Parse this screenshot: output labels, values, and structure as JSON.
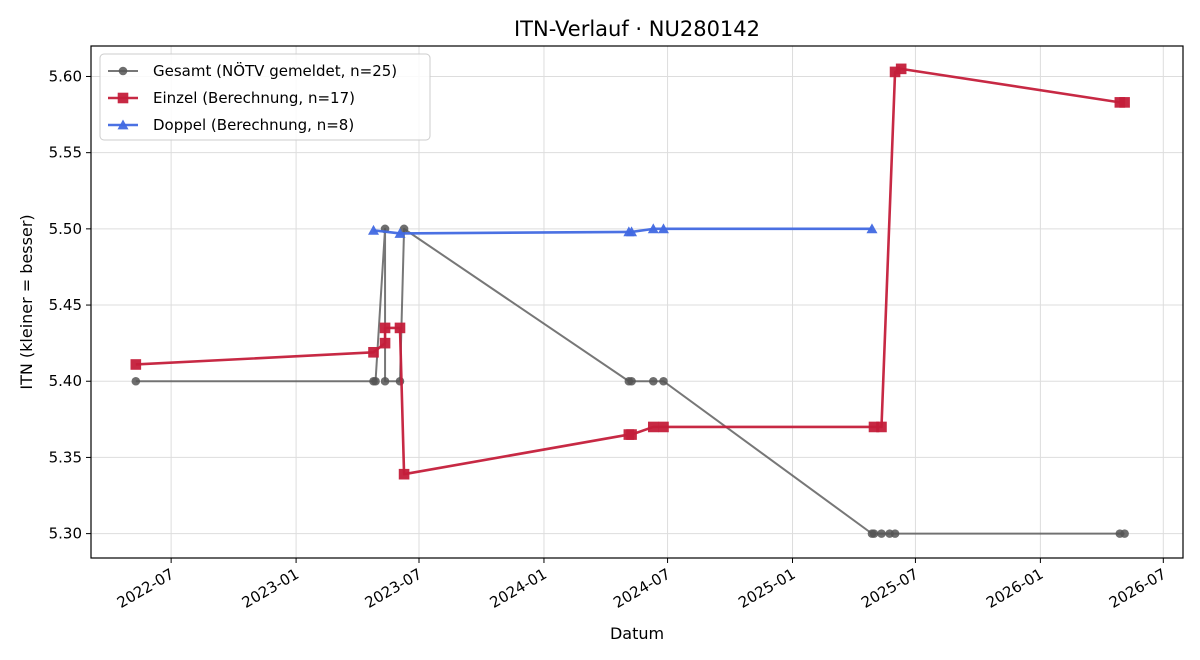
{
  "chart_data": {
    "type": "line",
    "title": "ITN-Verlauf · NU280142",
    "xlabel": "Datum",
    "ylabel": "ITN  (kleiner = besser)",
    "xlim": [
      "2022-03-05",
      "2026-07-30"
    ],
    "ylim": [
      5.284,
      5.62
    ],
    "x_ticks": [
      "2022-07-01",
      "2023-01-01",
      "2023-07-01",
      "2024-01-01",
      "2024-07-01",
      "2025-01-01",
      "2025-07-01",
      "2026-01-01",
      "2026-07-01"
    ],
    "x_tick_labels": [
      "2022-07",
      "2023-01",
      "2023-07",
      "2024-01",
      "2024-07",
      "2025-01",
      "2025-07",
      "2026-01",
      "2026-07"
    ],
    "y_ticks": [
      5.3,
      5.35,
      5.4,
      5.45,
      5.5,
      5.55,
      5.6
    ],
    "y_tick_labels": [
      "5.30",
      "5.35",
      "5.40",
      "5.45",
      "5.50",
      "5.55",
      "5.60"
    ],
    "grid": true,
    "legend_position": "top-left",
    "series": [
      {
        "name": "Gesamt (NÖTV gemeldet, n=25)",
        "color": "#555555",
        "marker": "circle",
        "points": [
          {
            "x": "2022-05-10",
            "y": 5.4
          },
          {
            "x": "2023-04-25",
            "y": 5.4
          },
          {
            "x": "2023-04-28",
            "y": 5.4
          },
          {
            "x": "2023-05-12",
            "y": 5.5
          },
          {
            "x": "2023-05-12",
            "y": 5.4
          },
          {
            "x": "2023-06-03",
            "y": 5.4
          },
          {
            "x": "2023-06-09",
            "y": 5.5
          },
          {
            "x": "2024-05-05",
            "y": 5.4
          },
          {
            "x": "2024-05-09",
            "y": 5.4
          },
          {
            "x": "2024-06-10",
            "y": 5.4
          },
          {
            "x": "2024-06-25",
            "y": 5.4
          },
          {
            "x": "2025-04-28",
            "y": 5.3
          },
          {
            "x": "2025-05-01",
            "y": 5.3
          },
          {
            "x": "2025-05-12",
            "y": 5.3
          },
          {
            "x": "2025-05-24",
            "y": 5.3
          },
          {
            "x": "2025-06-01",
            "y": 5.3
          },
          {
            "x": "2026-04-28",
            "y": 5.3
          },
          {
            "x": "2026-05-05",
            "y": 5.3
          }
        ]
      },
      {
        "name": "Einzel (Berechnung, n=17)",
        "color": "#c41e3a",
        "marker": "square",
        "points": [
          {
            "x": "2022-05-10",
            "y": 5.411
          },
          {
            "x": "2023-04-25",
            "y": 5.419
          },
          {
            "x": "2023-05-12",
            "y": 5.425
          },
          {
            "x": "2023-05-12",
            "y": 5.435
          },
          {
            "x": "2023-06-03",
            "y": 5.435
          },
          {
            "x": "2023-06-09",
            "y": 5.339
          },
          {
            "x": "2024-05-05",
            "y": 5.365
          },
          {
            "x": "2024-05-09",
            "y": 5.365
          },
          {
            "x": "2024-06-10",
            "y": 5.37
          },
          {
            "x": "2024-06-25",
            "y": 5.37
          },
          {
            "x": "2025-05-01",
            "y": 5.37
          },
          {
            "x": "2025-05-12",
            "y": 5.37
          },
          {
            "x": "2025-06-01",
            "y": 5.603
          },
          {
            "x": "2025-06-10",
            "y": 5.605
          },
          {
            "x": "2026-04-28",
            "y": 5.583
          },
          {
            "x": "2026-05-05",
            "y": 5.583
          }
        ]
      },
      {
        "name": "Doppel (Berechnung, n=8)",
        "color": "#4169e1",
        "marker": "triangle",
        "points": [
          {
            "x": "2023-04-25",
            "y": 5.499
          },
          {
            "x": "2023-06-03",
            "y": 5.497
          },
          {
            "x": "2024-05-05",
            "y": 5.498
          },
          {
            "x": "2024-05-09",
            "y": 5.498
          },
          {
            "x": "2024-06-10",
            "y": 5.5
          },
          {
            "x": "2024-06-25",
            "y": 5.5
          },
          {
            "x": "2025-04-28",
            "y": 5.5
          }
        ]
      }
    ]
  }
}
